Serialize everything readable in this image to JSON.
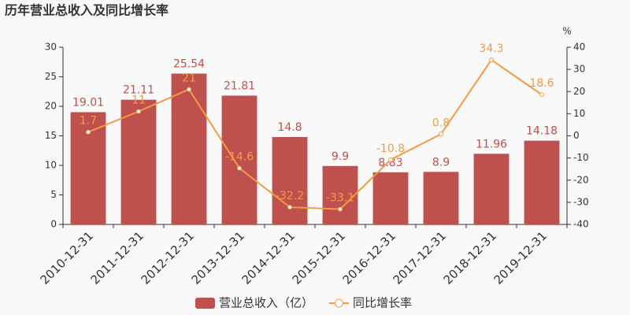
{
  "chart_data": {
    "type": "bar",
    "title": "历年营业总收入及同比增长率",
    "categories": [
      "2010-12-31",
      "2011-12-31",
      "2012-12-31",
      "2013-12-31",
      "2014-12-31",
      "2015-12-31",
      "2016-12-31",
      "2017-12-31",
      "2018-12-31",
      "2019-12-31"
    ],
    "series": [
      {
        "name": "营业总收入（亿）",
        "type": "bar",
        "color": "#c0504d",
        "label_color": "#c0504d",
        "values": [
          19.01,
          21.11,
          25.54,
          21.81,
          14.8,
          9.9,
          8.83,
          8.9,
          11.96,
          14.18
        ]
      },
      {
        "name": "同比增长率",
        "type": "line",
        "axis": "y2",
        "color": "#f29b44",
        "label_color": "#f29b44",
        "values": [
          1.7,
          11,
          21,
          -14.6,
          -32.2,
          -33.1,
          -10.8,
          0.8,
          34.3,
          18.6
        ]
      }
    ],
    "ylim": [
      0,
      30
    ],
    "yticks": [
      0,
      5,
      10,
      15,
      20,
      25,
      30
    ],
    "y2lim": [
      -40,
      40
    ],
    "y2ticks": [
      -40,
      -30,
      -20,
      -10,
      0,
      10,
      20,
      30,
      40
    ],
    "y2label": "%"
  }
}
